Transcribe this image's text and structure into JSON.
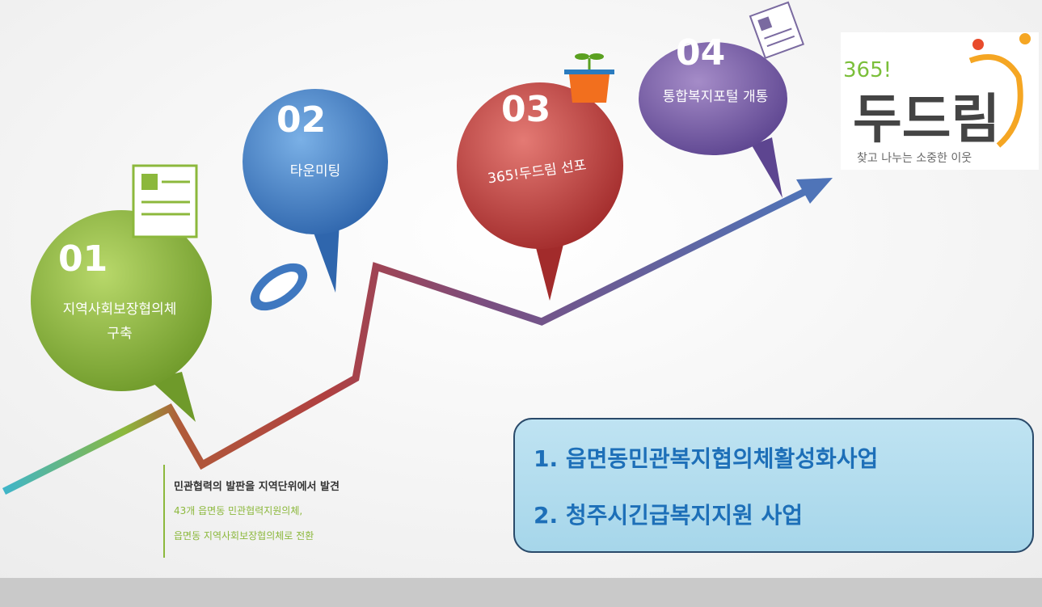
{
  "steps": [
    {
      "number": "01",
      "label_lines": [
        "지역사회보장협의체",
        "구축"
      ]
    },
    {
      "number": "02",
      "label_lines": [
        "타운미팅"
      ]
    },
    {
      "number": "03",
      "label_lines": [
        "365!두드림 선포"
      ]
    },
    {
      "number": "04",
      "label_lines": [
        "통합복지포털 개통"
      ]
    }
  ],
  "logo": {
    "prefix": "365!",
    "name": "두드림",
    "slogan": "찾고 나누는 소중한 이웃"
  },
  "note": {
    "lines": [
      "민관협력의 발판을 지역단위에서 발견",
      "43개 읍면동 민관협력지원의체,",
      "읍면동 지역사회보장협의체로 전환"
    ]
  },
  "projects": [
    "1. 읍면동민관복지협의체활성화사업",
    "2. 청주시긴급복지지원 사업"
  ]
}
